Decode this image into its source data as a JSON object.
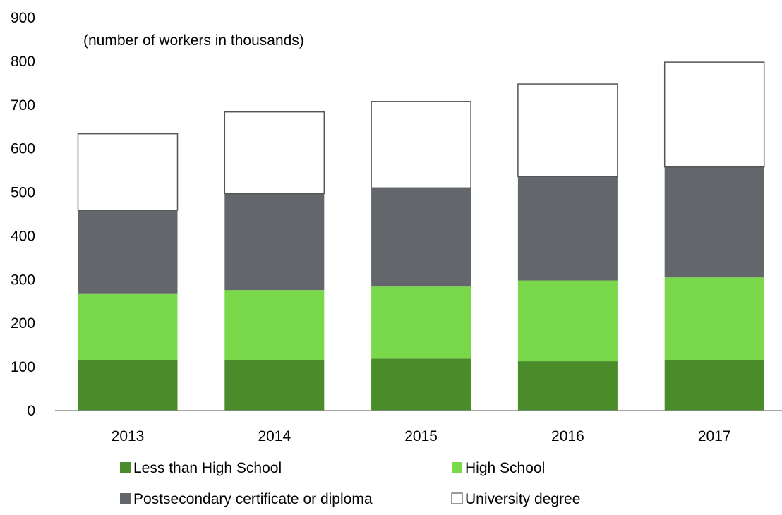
{
  "chart_data": {
    "type": "bar",
    "stacked": true,
    "note": "(number of workers in thousands)",
    "categories": [
      "2013",
      "2014",
      "2015",
      "2016",
      "2017"
    ],
    "series": [
      {
        "name": "Less than High School",
        "color": "#4a8c2a",
        "values": [
          116,
          115,
          119,
          113,
          115
        ]
      },
      {
        "name": "High School",
        "color": "#7ad84b",
        "values": [
          151,
          161,
          165,
          185,
          190
        ]
      },
      {
        "name": "Postsecondary certificate or diploma",
        "color": "#63666a",
        "values": [
          192,
          221,
          226,
          238,
          253
        ]
      },
      {
        "name": "University degree",
        "color": "#ffffff",
        "values": [
          175,
          187,
          198,
          212,
          240
        ]
      }
    ],
    "ylim": [
      0,
      900
    ],
    "yticks": [
      "0",
      "100",
      "200",
      "300",
      "400",
      "500",
      "600",
      "700",
      "800",
      "900"
    ],
    "grid": false,
    "legend_position": "bottom"
  }
}
